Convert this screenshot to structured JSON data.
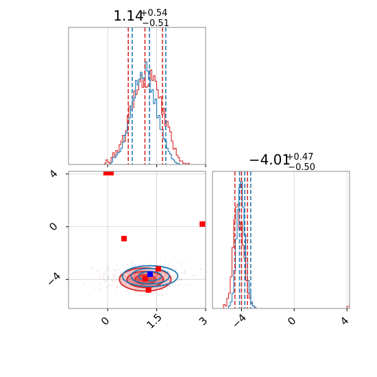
{
  "chart_data": [
    {
      "type": "histogram",
      "panel": "marginal-param-1",
      "title": {
        "value": "1.14",
        "plus": "+0.54",
        "minus": "−0.51"
      },
      "xlim": [
        -1.2,
        3.0
      ],
      "x_ticks": [
        0.0,
        1.5,
        3.0
      ],
      "grid": true,
      "quantile_lines": {
        "red": [
          0.63,
          1.14,
          1.68
        ],
        "blue": [
          0.75,
          1.28,
          1.78
        ]
      },
      "series": [
        {
          "color": "#d62728",
          "bin_start": -1.2,
          "bin_width": 0.05,
          "counts": [
            0.0,
            0.0,
            0.0,
            0.0,
            0.0,
            0.0,
            0.0,
            0.0,
            0.0,
            0.0,
            0.0,
            0.0,
            0.0,
            0.0,
            0.0,
            0.0,
            0.0,
            0.0,
            0.0,
            0.0,
            0.0,
            0.0,
            0.01,
            0.04,
            0.02,
            0.01,
            0.06,
            0.1,
            0.07,
            0.12,
            0.1,
            0.17,
            0.2,
            0.25,
            0.2,
            0.29,
            0.42,
            0.5,
            0.47,
            0.49,
            0.63,
            0.6,
            0.64,
            0.71,
            0.77,
            0.66,
            0.72,
            0.66,
            0.67,
            0.69,
            0.81,
            0.72,
            0.76,
            0.71,
            0.64,
            0.57,
            0.58,
            0.43,
            0.48,
            0.33,
            0.37,
            0.32,
            0.28,
            0.2,
            0.13,
            0.14,
            0.08,
            0.06,
            0.03,
            0.03,
            0.01,
            0.01,
            0.0,
            0.01,
            0.0,
            0.0,
            0.0,
            0.0,
            0.0,
            0.0,
            0.0,
            0.0,
            0.0,
            0.0
          ]
        },
        {
          "color": "#1f77b4",
          "bin_start": -1.2,
          "bin_width": 0.05,
          "counts": [
            0.0,
            0.0,
            0.0,
            0.0,
            0.0,
            0.0,
            0.0,
            0.0,
            0.0,
            0.0,
            0.0,
            0.0,
            0.0,
            0.0,
            0.0,
            0.0,
            0.0,
            0.0,
            0.0,
            0.0,
            0.0,
            0.0,
            0.0,
            0.0,
            0.0,
            0.0,
            0.02,
            0.06,
            0.06,
            0.08,
            0.1,
            0.11,
            0.14,
            0.19,
            0.25,
            0.27,
            0.35,
            0.4,
            0.5,
            0.55,
            0.57,
            0.72,
            0.68,
            0.73,
            0.79,
            0.74,
            0.73,
            0.88,
            0.8,
            0.73,
            0.62,
            0.64,
            0.52,
            0.56,
            0.4,
            0.42,
            0.3,
            0.3,
            0.22,
            0.2,
            0.14,
            0.11,
            0.09,
            0.05,
            0.04,
            0.02,
            0.01,
            0.01,
            0.0,
            0.0,
            0.0,
            0.0,
            0.0,
            0.0,
            0.0,
            0.0,
            0.0,
            0.0,
            0.0,
            0.0,
            0.0,
            0.0,
            0.0,
            0.0
          ]
        }
      ]
    },
    {
      "type": "histogram",
      "panel": "marginal-param-2",
      "title": {
        "value": "−4.01",
        "plus": "+0.47",
        "minus": "−0.50"
      },
      "xlim": [
        -6.2,
        4.2
      ],
      "x_ticks": [
        -4,
        0,
        4
      ],
      "grid": true,
      "quantile_lines": {
        "red": [
          -4.5,
          -4.0,
          -3.55
        ],
        "blue": [
          -4.15,
          -3.75,
          -3.3
        ]
      },
      "series": [
        {
          "color": "#d62728",
          "bin_start": -5.5,
          "bin_width": 0.13,
          "counts": [
            0.0,
            0.03,
            0.02,
            0.08,
            0.12,
            0.25,
            0.48,
            0.7,
            0.8,
            0.82,
            0.62,
            0.68,
            0.5,
            0.4,
            0.22,
            0.12,
            0.08,
            0.04,
            0.02,
            0.01,
            0.0
          ]
        },
        {
          "color": "#1f77b4",
          "bin_start": -5.5,
          "bin_width": 0.13,
          "counts": [
            0.0,
            0.0,
            0.0,
            0.0,
            0.02,
            0.05,
            0.12,
            0.3,
            0.55,
            0.78,
            0.95,
            1.0,
            0.8,
            0.58,
            0.4,
            0.22,
            0.12,
            0.05,
            0.02,
            0.01,
            0.0
          ]
        }
      ]
    },
    {
      "type": "scatter",
      "panel": "joint-param-1-vs-param-2",
      "xlim": [
        -1.2,
        3.0
      ],
      "ylim": [
        -6.2,
        4.2
      ],
      "x_ticks": [
        0.0,
        1.5,
        3.0
      ],
      "y_ticks": [
        -4,
        0,
        4
      ],
      "grid": true,
      "contours": [
        {
          "color": "#d62728",
          "fill": true,
          "center": [
            1.15,
            -4.0
          ],
          "radii": [
            [
              1.35,
              1.5
            ],
            [
              0.95,
              1.05
            ],
            [
              0.55,
              0.6
            ]
          ]
        },
        {
          "color": "#1f77b4",
          "fill": false,
          "center": [
            1.3,
            -3.75
          ],
          "radii": [
            [
              1.45,
              1.35
            ],
            [
              1.0,
              1.0
            ],
            [
              0.6,
              0.6
            ]
          ]
        }
      ],
      "markers": [
        {
          "color": "#ff0000",
          "x": -0.05,
          "y": 4.1
        },
        {
          "color": "#ff0000",
          "x": 0.1,
          "y": 4.1
        },
        {
          "color": "#ff0000",
          "x": 0.5,
          "y": -0.9
        },
        {
          "color": "#ff0000",
          "x": 2.9,
          "y": 0.2
        },
        {
          "color": "#ff0000",
          "x": 1.15,
          "y": -3.95
        },
        {
          "color": "#ff0000",
          "x": 1.25,
          "y": -4.8
        },
        {
          "color": "#ff0000",
          "x": 1.55,
          "y": -3.2
        },
        {
          "color": "#0000ff",
          "x": 1.3,
          "y": -3.6
        }
      ]
    }
  ]
}
